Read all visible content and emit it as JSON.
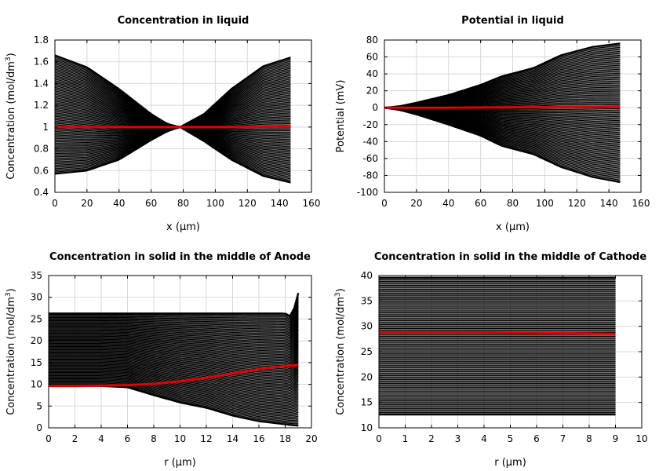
{
  "chart_data": [
    {
      "type": "line",
      "title": "Concentration in liquid",
      "xlabel": "x (µm)",
      "ylabel": "Concentration (mol/dm",
      "ylabel_sup": "3",
      "ylabel_end": ")",
      "xlim": [
        0,
        160
      ],
      "ylim": [
        0.4,
        1.8
      ],
      "xticks": [
        0,
        20,
        40,
        60,
        80,
        100,
        120,
        140,
        160
      ],
      "yticks": [
        0.4,
        0.6,
        0.8,
        1,
        1.2,
        1.4,
        1.6,
        1.8
      ],
      "xtick_labels": [
        "0",
        "20",
        "40",
        "60",
        "80",
        "100",
        "120",
        "140",
        "160"
      ],
      "ytick_labels": [
        "0.4",
        "0.6",
        "0.8",
        "1",
        "1.2",
        "1.4",
        "1.6",
        "1.8"
      ],
      "grid": true,
      "envelope": {
        "x": [
          0,
          20,
          40,
          60,
          70,
          78,
          93,
          110,
          130,
          147
        ],
        "upper": [
          1.66,
          1.55,
          1.35,
          1.12,
          1.03,
          1.0,
          1.12,
          1.35,
          1.56,
          1.64
        ],
        "lower": [
          0.57,
          0.6,
          0.7,
          0.88,
          0.96,
          1.0,
          0.87,
          0.7,
          0.55,
          0.49
        ]
      },
      "series": [
        {
          "x": [
            0,
            20,
            40,
            60,
            78,
            100,
            120,
            147
          ],
          "values": [
            1.0,
            1.0,
            1.0,
            1.0,
            1.0,
            1.0,
            1.0,
            1.01
          ],
          "color": "#e00000"
        }
      ],
      "line_color": "#000000"
    },
    {
      "type": "line",
      "title": "Potential in liquid",
      "xlabel": "x (µm)",
      "ylabel": "Potential (mV)",
      "ylabel_sup": "",
      "ylabel_end": "",
      "xlim": [
        0,
        160
      ],
      "ylim": [
        -100,
        80
      ],
      "xticks": [
        0,
        20,
        40,
        60,
        80,
        100,
        120,
        140,
        160
      ],
      "yticks": [
        -100,
        -80,
        -60,
        -40,
        -20,
        0,
        20,
        40,
        60,
        80
      ],
      "xtick_labels": [
        "0",
        "20",
        "40",
        "60",
        "80",
        "100",
        "120",
        "140",
        "160"
      ],
      "ytick_labels": [
        "-100",
        "-80",
        "-60",
        "-40",
        "-20",
        "0",
        "20",
        "40",
        "60",
        "80"
      ],
      "grid": true,
      "envelope": {
        "x": [
          0,
          10,
          20,
          40,
          60,
          73,
          93,
          110,
          130,
          147
        ],
        "upper": [
          0,
          2,
          6,
          15,
          27,
          37,
          47,
          62,
          72,
          76
        ],
        "lower": [
          0,
          -3,
          -8,
          -20,
          -33,
          -45,
          -55,
          -70,
          -82,
          -88
        ]
      },
      "series": [
        {
          "x": [
            0,
            40,
            80,
            120,
            147
          ],
          "values": [
            0,
            0,
            0.5,
            0.8,
            1
          ],
          "color": "#e00000"
        }
      ],
      "line_color": "#000000"
    },
    {
      "type": "line",
      "title": "Concentration in solid in the middle of Anode",
      "xlabel": "r (µm)",
      "ylabel": "Concentration (mol/dm",
      "ylabel_sup": "3",
      "ylabel_end": ")",
      "xlim": [
        0,
        20
      ],
      "ylim": [
        0,
        35
      ],
      "xticks": [
        0,
        2,
        4,
        6,
        8,
        10,
        12,
        14,
        16,
        18,
        20
      ],
      "yticks": [
        0,
        5,
        10,
        15,
        20,
        25,
        30,
        35
      ],
      "xtick_labels": [
        "0",
        "2",
        "4",
        "6",
        "8",
        "10",
        "12",
        "14",
        "16",
        "18",
        "20"
      ],
      "ytick_labels": [
        "0",
        "5",
        "10",
        "15",
        "20",
        "25",
        "30",
        "35"
      ],
      "grid": true,
      "envelope": {
        "x": [
          0,
          2,
          4,
          6,
          8,
          10,
          12,
          14,
          16,
          18,
          18.5,
          19
        ],
        "upper": [
          26.3,
          26.3,
          26.3,
          26.3,
          26.3,
          26.3,
          26.3,
          26.3,
          26.3,
          26.3,
          25.5,
          31
        ],
        "lower": [
          9.6,
          9.6,
          9.6,
          9.3,
          7.5,
          5.8,
          4.6,
          2.8,
          1.5,
          0.8,
          0.6,
          0.5
        ]
      },
      "series": [
        {
          "x": [
            0,
            2,
            4,
            6,
            8,
            10,
            12,
            14,
            16,
            18,
            19
          ],
          "values": [
            9.6,
            9.6,
            9.7,
            9.8,
            10.1,
            10.7,
            11.5,
            12.5,
            13.5,
            14.2,
            14.4
          ],
          "color": "#e00000"
        }
      ],
      "line_color": "#000000"
    },
    {
      "type": "line",
      "title": "Concentration in solid in the middle of Cathode",
      "xlabel": "r (µm)",
      "ylabel": "Concentration (mol/dm",
      "ylabel_sup": "3",
      "ylabel_end": ")",
      "xlim": [
        0,
        10
      ],
      "ylim": [
        10,
        40
      ],
      "xticks": [
        0,
        1,
        2,
        3,
        4,
        5,
        6,
        7,
        8,
        9,
        10
      ],
      "yticks": [
        10,
        15,
        20,
        25,
        30,
        35,
        40
      ],
      "xtick_labels": [
        "0",
        "1",
        "2",
        "3",
        "4",
        "5",
        "6",
        "7",
        "8",
        "9",
        "10"
      ],
      "ytick_labels": [
        "10",
        "15",
        "20",
        "25",
        "30",
        "35",
        "40"
      ],
      "grid": true,
      "envelope": {
        "x": [
          0,
          9
        ],
        "upper": [
          39.6,
          39.6
        ],
        "lower": [
          12.6,
          12.6
        ]
      },
      "series": [
        {
          "x": [
            0,
            2,
            4,
            6,
            8,
            9
          ],
          "values": [
            28.8,
            28.8,
            28.8,
            28.7,
            28.6,
            28.5
          ],
          "color": "#e00000"
        }
      ],
      "line_color": "#000000"
    }
  ]
}
